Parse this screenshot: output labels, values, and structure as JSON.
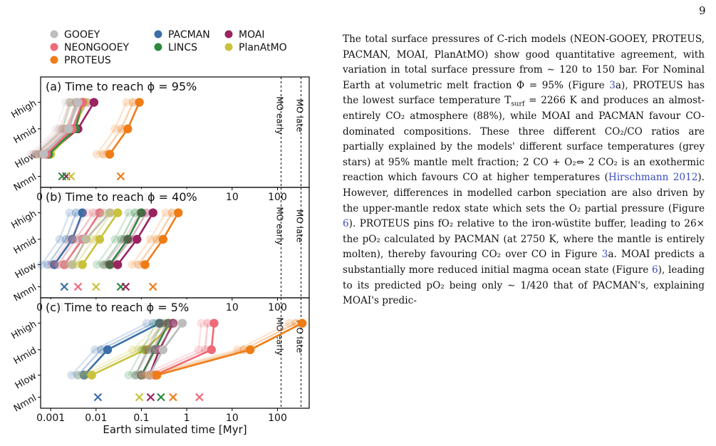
{
  "page_number": "9",
  "chart_data": {
    "type": "line",
    "xlabel": "Earth simulated time [Myr]",
    "xscale": "log",
    "xlim": [
      0.0006,
      500
    ],
    "xticks": [
      "0.001",
      "0.01",
      "0.1",
      "1",
      "10",
      "100"
    ],
    "yticks": [
      "Hhigh",
      "Hmid",
      "Hlow",
      "Nmnl"
    ],
    "vlines": [
      {
        "x": 120,
        "label": "MO early"
      },
      {
        "x": 330,
        "label": "MO late"
      }
    ],
    "legend": [
      {
        "name": "GOOEY",
        "color": "#bdbdbd"
      },
      {
        "name": "PACMAN",
        "color": "#3a6fa8"
      },
      {
        "name": "MOAI",
        "color": "#99245f"
      },
      {
        "name": "NEONGOOEY",
        "color": "#ee6a79"
      },
      {
        "name": "LINCS",
        "color": "#2a8a3e"
      },
      {
        "name": "PlanAtMO",
        "color": "#c9c23c"
      },
      {
        "name": "PROTEUS",
        "color": "#ef7c17"
      }
    ],
    "panels": [
      {
        "title": "(a) Time to reach ϕ = 95%",
        "series": [
          {
            "model": "PROTEUS",
            "color": "#ef7c17",
            "x": [
              0.02,
              0.05,
              0.09
            ],
            "nominal": 0.035
          },
          {
            "model": "MOAI",
            "color": "#99245f",
            "x": [
              0.0009,
              0.004,
              0.009
            ],
            "nominal": 0.0022
          },
          {
            "model": "PlanAtMO",
            "color": "#c9c23c",
            "x": [
              0.001,
              0.0035,
              0.0055
            ],
            "nominal": 0.0028
          },
          {
            "model": "LINCS",
            "color": "#2a8a3e",
            "x": [
              0.0009,
              0.0035,
              0.005
            ],
            "nominal": 0.0018
          },
          {
            "model": "NEONGOOEY",
            "color": "#ee6a79",
            "x": [
              0.0008,
              0.003,
              0.005
            ],
            "nominal": null
          },
          {
            "model": "GOOEY",
            "color": "#bdbdbd",
            "x": [
              0.0007,
              0.0025,
              0.004
            ],
            "nominal": null
          }
        ]
      },
      {
        "title": "(b) Time to reach ϕ = 40%",
        "series": [
          {
            "model": "PACMAN",
            "color": "#3a6fa8",
            "x": [
              0.0012,
              0.003,
              0.005
            ],
            "nominal": 0.002
          },
          {
            "model": "NEONGOOEY",
            "color": "#ee6a79",
            "x": [
              0.002,
              0.005,
              0.012
            ],
            "nominal": 0.004
          },
          {
            "model": "GOOEY",
            "color": "#bdbdbd",
            "x": [
              0.003,
              0.006,
              0.02
            ],
            "nominal": null
          },
          {
            "model": "PlanAtMO",
            "color": "#c9c23c",
            "x": [
              0.005,
              0.012,
              0.03
            ],
            "nominal": 0.01
          },
          {
            "model": "LINCS",
            "color": "#2a8a3e",
            "x": [
              0.02,
              0.05,
              0.1
            ],
            "nominal": 0.035
          },
          {
            "model": "MOAI",
            "color": "#99245f",
            "x": [
              0.03,
              0.08,
              0.18
            ],
            "nominal": 0.045
          },
          {
            "model": "PROTEUS",
            "color": "#ef7c17",
            "x": [
              0.12,
              0.3,
              0.65
            ],
            "nominal": 0.18
          }
        ]
      },
      {
        "title": "(c) Time to reach ϕ = 5%",
        "series": [
          {
            "model": "PACMAN",
            "color": "#3a6fa8",
            "x": [
              0.0055,
              0.018,
              0.25
            ],
            "nominal": 0.011
          },
          {
            "model": "PlanAtMO",
            "color": "#c9c23c",
            "x": [
              0.008,
              0.12,
              0.5
            ],
            "nominal": 0.09
          },
          {
            "model": "LINCS",
            "color": "#2a8a3e",
            "x": [
              0.1,
              0.2,
              0.4
            ],
            "nominal": 0.27
          },
          {
            "model": "MOAI",
            "color": "#99245f",
            "x": [
              0.15,
              0.25,
              0.5
            ],
            "nominal": 0.16
          },
          {
            "model": "NEONGOOEY",
            "color": "#ee6a79",
            "x": [
              0.2,
              3.5,
              4.0
            ],
            "nominal": 1.9
          },
          {
            "model": "GOOEY",
            "color": "#bdbdbd",
            "x": [
              0.15,
              0.3,
              0.8
            ],
            "nominal": null
          },
          {
            "model": "PROTEUS",
            "color": "#ef7c17",
            "x": [
              0.22,
              25,
              350
            ],
            "nominal": 0.5
          }
        ]
      }
    ]
  },
  "text": {
    "p1": "The total surface pressures of C-rich models (NEON-GOOEY, PROTEUS, PACMAN, MOAI, PlanAtMO) show good quantitative agreement, with variation in total surface pressure from ∼ 120 to 150 bar. For Nominal Earth at volumetric melt fraction Φ = 95% (Figure ",
    "ref_3a": "3",
    "p2": "a), PROTEUS has the lowest surface temperature T",
    "tsurf_sub": "surf",
    "p3": " = 2266 K and produces an almost-entirely CO₂ atmosphere (88%), while MOAI and PACMAN favour CO-dominated compositions. These three different CO₂/CO ratios are partially explained by the models' different surface temperatures (grey stars) at 95% mantle melt fraction; 2 CO + O₂⇔ 2 CO₂ is an exothermic reaction which favours CO at higher temperatures (",
    "cite_hirsch": "Hirschmann 2012",
    "p4": "). However, differences in modelled carbon speciation are also driven by the upper-mantle redox state which sets the O₂ partial pressure (Figure ",
    "ref_6a": "6",
    "p5": "). PROTEUS pins fO₂ relative to the iron-wüstite buffer, leading to 26× the pO₂ calculated by PACMAN (at 2750 K, where the mantle is entirely molten), thereby favouring CO₂ over CO in Figure ",
    "ref_3b": "3",
    "p6": "a. MOAI predicts a substantially more reduced initial magma ocean state (Figure ",
    "ref_6b": "6",
    "p7": "), leading to its predicted pO₂ being only ∼ 1/420 that of PACMAN's, explaining MOAI's predic-"
  }
}
